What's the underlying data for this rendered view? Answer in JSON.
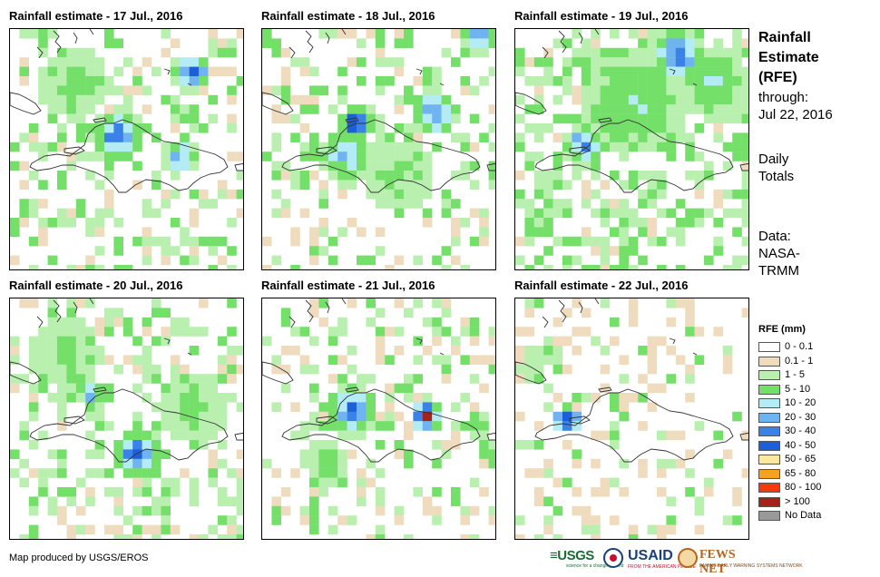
{
  "panels": [
    {
      "title": "Rainfall estimate - 17 Jul., 2016"
    },
    {
      "title": "Rainfall estimate - 18 Jul., 2016"
    },
    {
      "title": "Rainfall estimate - 19 Jul., 2016"
    },
    {
      "title": "Rainfall estimate - 20 Jul., 2016"
    },
    {
      "title": "Rainfall estimate - 21 Jul., 2016"
    },
    {
      "title": "Rainfall estimate - 22 Jul., 2016"
    }
  ],
  "side": {
    "title_lines": [
      "Rainfall",
      "Estimate",
      "(RFE)"
    ],
    "through_label": "through:",
    "through_date": "Jul 22, 2016",
    "totals_lines": [
      "Daily",
      "Totals"
    ],
    "data_lines": [
      "Data:",
      "NASA-",
      "TRMM"
    ]
  },
  "legend": {
    "title": "RFE (mm)",
    "items": [
      {
        "label": "0 - 0.1",
        "color": "#ffffff"
      },
      {
        "label": "0.1 - 1",
        "color": "#efdcbf"
      },
      {
        "label": "1 - 5",
        "color": "#b9f0b0"
      },
      {
        "label": "5 - 10",
        "color": "#74e06a"
      },
      {
        "label": "10 - 20",
        "color": "#b3ecf5"
      },
      {
        "label": "20 - 30",
        "color": "#6fb3f0"
      },
      {
        "label": "30 - 40",
        "color": "#3b82e8"
      },
      {
        "label": "40 - 50",
        "color": "#1c5fd8"
      },
      {
        "label": "50 - 65",
        "color": "#fde79c"
      },
      {
        "label": "65 - 80",
        "color": "#f7a21a"
      },
      {
        "label": "80 - 100",
        "color": "#f23a0b"
      },
      {
        "label": "> 100",
        "color": "#a8201a"
      },
      {
        "label": "No Data",
        "color": "#999999"
      }
    ]
  },
  "footer": {
    "credit": "Map produced by USGS/EROS"
  },
  "logos": {
    "usgs": "≡USGS",
    "usgs_tagline": "science for a changing world",
    "usaid": "USAID",
    "usaid_tagline": "FROM THE AMERICAN PEOPLE",
    "fews": "FEWS NET",
    "fews_tagline": "FAMINE EARLY WARNING SYSTEMS NETWORK"
  }
}
